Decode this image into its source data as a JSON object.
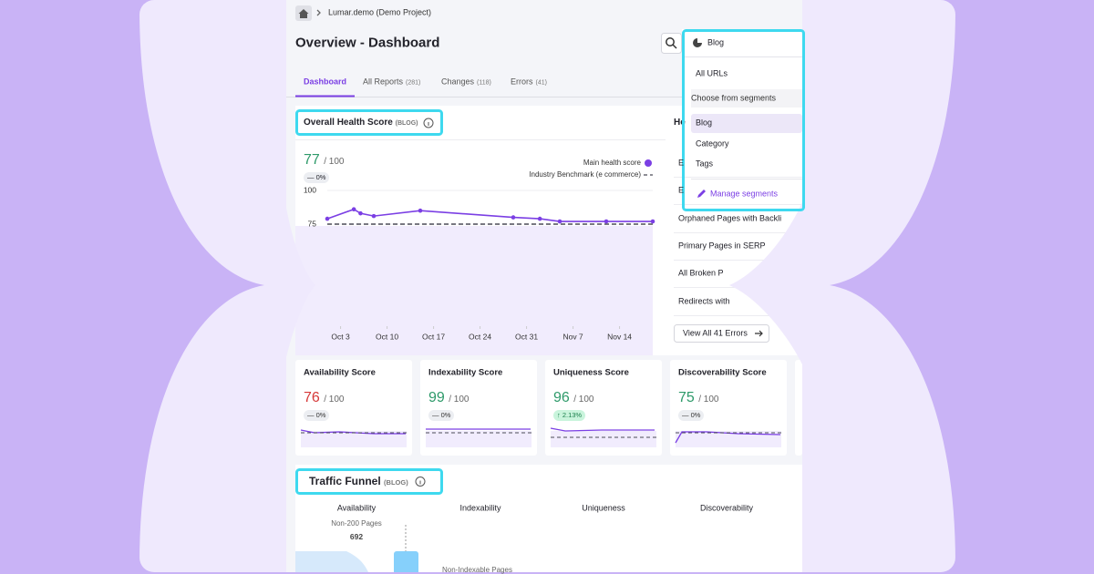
{
  "breadcrumb": "Lumar.demo (Demo Project)",
  "title": "Overview - Dashboard",
  "segment_select": {
    "selected": "Blog",
    "options": [
      "All URLs"
    ],
    "group_label": "Choose from segments",
    "segments": [
      "Blog",
      "Category",
      "Tags"
    ],
    "manage": "Manage segments"
  },
  "tabs": [
    {
      "label": "Dashboard"
    },
    {
      "label": "All Reports",
      "count": "(281)"
    },
    {
      "label": "Changes",
      "count": "(118)"
    },
    {
      "label": "Errors",
      "count": "(41)"
    }
  ],
  "health": {
    "title": "Overall Health Score",
    "segment": "(BLOG)",
    "score": 77,
    "max": "/ 100",
    "change": "— 0%",
    "score_color": "#2e9a6a",
    "chart": {
      "type": "line",
      "grid": true,
      "series": [
        {
          "name": "Main health score",
          "color": "#7b3fe4",
          "x": [
            1,
            5,
            6,
            8,
            15,
            29,
            33,
            36,
            43,
            50
          ],
          "values": [
            79,
            86,
            83,
            81,
            85,
            80,
            79,
            77,
            77,
            77
          ]
        },
        {
          "name": "Industry Benchmark (e commerce)",
          "color": "#4b4b57",
          "dashed": true,
          "x": [
            1,
            50
          ],
          "values": [
            75,
            75
          ]
        }
      ],
      "xlim": [
        1,
        50
      ],
      "ylim": [
        0,
        100
      ],
      "yticks": [
        100,
        75
      ],
      "xticks": [
        {
          "value": 3,
          "label": "Oct 3"
        },
        {
          "value": 10,
          "label": "Oct 10"
        },
        {
          "value": 17,
          "label": "Oct 17"
        },
        {
          "value": 24,
          "label": "Oct 24"
        },
        {
          "value": 31,
          "label": "Oct 31"
        },
        {
          "value": 38,
          "label": "Nov 7"
        },
        {
          "value": 45,
          "label": "Nov 14"
        }
      ]
    }
  },
  "errors_panel": {
    "title": "He",
    "items": [
      "E",
      "E",
      "Orphaned Pages with Backli",
      "Primary Pages in SERP",
      "All Broken P",
      "Redirects with"
    ],
    "button": "View All 41 Errors"
  },
  "cards": [
    {
      "title": "Availability Score",
      "score": 76,
      "max": "/ 100",
      "change": "— 0%",
      "color": "#d63838",
      "trend": "flat"
    },
    {
      "title": "Indexability Score",
      "score": 99,
      "max": "/ 100",
      "change": "— 0%",
      "color": "#2e9a6a",
      "trend": "flat"
    },
    {
      "title": "Uniqueness Score",
      "score": 96,
      "max": "/ 100",
      "change": "↑ 2.13%",
      "color": "#2e9a6a",
      "trend": "up"
    },
    {
      "title": "Discoverability Score",
      "score": 75,
      "max": "/ 100",
      "change": "— 0%",
      "color": "#2e9a6a",
      "trend": "flat"
    }
  ],
  "funnel": {
    "title": "Traffic Funnel",
    "segment": "(BLOG)",
    "columns": [
      "Availability",
      "Indexability",
      "Uniqueness",
      "Discoverability"
    ],
    "stage_label": "Non-200 Pages",
    "stage_count": 692,
    "next_label": "Non-Indexable Pages"
  }
}
